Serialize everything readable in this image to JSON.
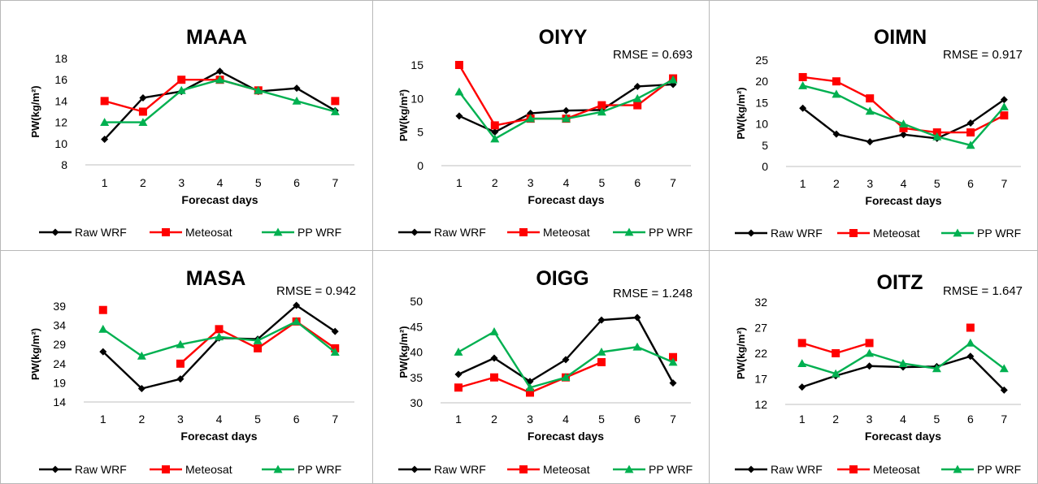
{
  "legend_labels": [
    "Raw WRF",
    "Meteosat",
    "PP WRF"
  ],
  "colors": {
    "raw": "#000000",
    "met": "#ff0000",
    "pp": "#00b050",
    "axis": "#bfbfbf",
    "border": "#b8b8b8"
  },
  "chart_data": [
    {
      "type": "line",
      "title": "MAAA",
      "rmse": "",
      "xlabel": "Forecast days",
      "ylabel": "PW(kg/m²)",
      "x": [
        1,
        2,
        3,
        4,
        5,
        6,
        7
      ],
      "ylim": [
        8,
        18
      ],
      "yticks": [
        8,
        10,
        12,
        14,
        16,
        18
      ],
      "legend": "bottom",
      "series": [
        {
          "name": "Raw WRF",
          "values": [
            10.4,
            14.3,
            14.9,
            16.8,
            14.9,
            15.2,
            13.1
          ]
        },
        {
          "name": "Meteosat",
          "values": [
            14,
            13,
            16,
            16,
            15,
            null,
            14
          ]
        },
        {
          "name": "PP WRF",
          "values": [
            12,
            12,
            15,
            16,
            15,
            14,
            13
          ]
        }
      ]
    },
    {
      "type": "line",
      "title": "OIYY",
      "rmse": "RMSE = 0.693",
      "xlabel": "Forecast days",
      "ylabel": "PW(kg/m²)",
      "x": [
        1,
        2,
        3,
        4,
        5,
        6,
        7
      ],
      "ylim": [
        0,
        15
      ],
      "yticks": [
        0,
        5,
        10,
        15
      ],
      "legend": "bottom",
      "series": [
        {
          "name": "Raw WRF",
          "values": [
            7.4,
            5.0,
            7.8,
            8.2,
            8.3,
            11.8,
            12.1
          ]
        },
        {
          "name": "Meteosat",
          "values": [
            15,
            6,
            7,
            7,
            9,
            9,
            13
          ]
        },
        {
          "name": "PP WRF",
          "values": [
            11,
            4,
            7,
            7,
            8,
            10,
            12.8
          ]
        }
      ]
    },
    {
      "type": "line",
      "title": "OIMN",
      "rmse": "RMSE = 0.917",
      "xlabel": "Forecast days",
      "ylabel": "PW(kg/m²)",
      "x": [
        1,
        2,
        3,
        4,
        5,
        6,
        7
      ],
      "ylim": [
        0,
        25
      ],
      "yticks": [
        0,
        5,
        10,
        15,
        20,
        25
      ],
      "legend": "bottom",
      "series": [
        {
          "name": "Raw WRF",
          "values": [
            13.7,
            7.6,
            5.8,
            7.5,
            6.6,
            10.2,
            15.7
          ]
        },
        {
          "name": "Meteosat",
          "values": [
            21,
            20,
            16,
            9,
            8,
            8,
            12
          ]
        },
        {
          "name": "PP WRF",
          "values": [
            19,
            17,
            13,
            10,
            7,
            5,
            14
          ]
        }
      ]
    },
    {
      "type": "line",
      "title": "MASA",
      "rmse": "RMSE = 0.942",
      "xlabel": "Forecast days",
      "ylabel": "PW(kg/m²)",
      "x": [
        1,
        2,
        3,
        4,
        5,
        6,
        7
      ],
      "ylim": [
        14,
        39
      ],
      "yticks": [
        14,
        19,
        24,
        29,
        34,
        39
      ],
      "legend": "bottom",
      "series": [
        {
          "name": "Raw WRF",
          "values": [
            27.1,
            17.5,
            20.0,
            30.7,
            30.4,
            39.2,
            32.4
          ]
        },
        {
          "name": "Meteosat",
          "values": [
            38,
            null,
            24,
            33,
            28,
            35,
            28
          ]
        },
        {
          "name": "PP WRF",
          "values": [
            33,
            26,
            29,
            31,
            30,
            35,
            27
          ]
        }
      ]
    },
    {
      "type": "line",
      "title": "OIGG",
      "rmse": "RMSE = 1.248",
      "xlabel": "Forecast days",
      "ylabel": "PW(kg/m²)",
      "x": [
        1,
        2,
        3,
        4,
        5,
        6,
        7
      ],
      "ylim": [
        30,
        50
      ],
      "yticks": [
        30,
        35,
        40,
        45,
        50
      ],
      "legend": "bottom",
      "series": [
        {
          "name": "Raw WRF",
          "values": [
            35.6,
            38.8,
            34.2,
            38.5,
            46.3,
            46.8,
            33.9
          ]
        },
        {
          "name": "Meteosat",
          "values": [
            33,
            35,
            32,
            35,
            38,
            null,
            39
          ]
        },
        {
          "name": "PP WRF",
          "values": [
            40,
            44,
            33,
            35,
            40,
            41,
            38
          ]
        }
      ]
    },
    {
      "type": "line",
      "title": "OITZ",
      "rmse": "RMSE = 1.647",
      "xlabel": "Forecast days",
      "ylabel": "PW(kg/m²)",
      "x": [
        1,
        2,
        3,
        4,
        5,
        6,
        7
      ],
      "ylim": [
        12,
        32
      ],
      "yticks": [
        12,
        17,
        22,
        27,
        32
      ],
      "legend": "bottom",
      "series": [
        {
          "name": "Raw WRF",
          "values": [
            15.4,
            17.6,
            19.5,
            19.3,
            19.4,
            21.4,
            14.8
          ]
        },
        {
          "name": "Meteosat",
          "values": [
            24,
            22,
            24,
            null,
            null,
            27,
            null
          ]
        },
        {
          "name": "PP WRF",
          "values": [
            20,
            18,
            22,
            20,
            19,
            24,
            19
          ]
        }
      ]
    }
  ]
}
